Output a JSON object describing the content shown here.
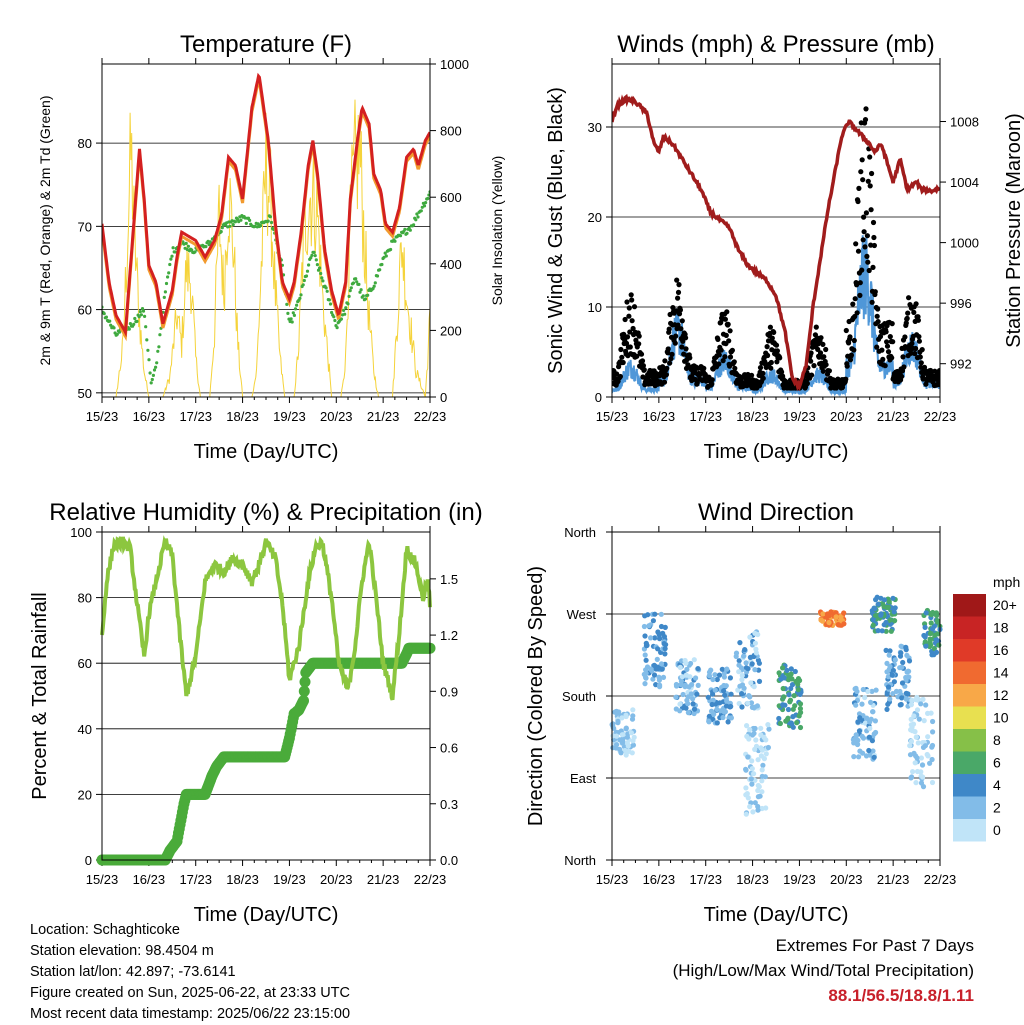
{
  "chart_data": [
    {
      "type": "line",
      "title": "Temperature (F)",
      "xlabel": "Time (Day/UTC)",
      "ylabel": "2m & 9m T (Red, Orange) & 2m Td (Green)",
      "y2label": "Solar Insolation (Yellow)",
      "x_ticks": [
        "15/23",
        "16/23",
        "17/23",
        "18/23",
        "19/23",
        "20/23",
        "21/23",
        "22/23"
      ],
      "ylim": [
        49.5,
        89.5
      ],
      "y_ticks": [
        50,
        60,
        70,
        80
      ],
      "y2lim": [
        0,
        1000
      ],
      "y2_ticks": [
        0,
        200,
        400,
        600,
        800,
        1000
      ],
      "series": [
        {
          "axis": "left",
          "color": "#d42020",
          "x": [
            0,
            0.15,
            0.3,
            0.5,
            0.65,
            0.8,
            0.9,
            1.0,
            1.15,
            1.3,
            1.5,
            1.6,
            1.7,
            2.0,
            2.2,
            2.4,
            2.55,
            2.7,
            2.85,
            3.0,
            3.2,
            3.35,
            3.55,
            3.7,
            3.85,
            4.0,
            4.1,
            4.25,
            4.4,
            4.5,
            4.6,
            4.75,
            4.9,
            5.05,
            5.2,
            5.3,
            5.45,
            5.55,
            5.7,
            5.8,
            5.95,
            6.05,
            6.2,
            6.35,
            6.5,
            6.65,
            6.75,
            6.9,
            7.0
          ],
          "values": [
            70,
            63,
            59,
            57,
            68,
            79,
            73,
            65,
            63,
            58,
            62,
            66,
            69,
            68,
            66,
            68,
            71,
            78,
            77,
            73,
            84,
            88,
            80,
            70,
            63,
            61,
            63,
            69,
            77,
            80,
            76,
            67,
            62,
            59,
            63,
            73,
            80,
            84,
            82,
            76,
            74,
            70,
            69,
            72,
            78,
            79,
            77,
            80,
            81
          ]
        },
        {
          "axis": "left",
          "color": "#3faa3f",
          "x": [
            0,
            0.3,
            0.6,
            0.9,
            1.05,
            1.15,
            1.35,
            1.5,
            1.7,
            2.0,
            2.3,
            2.6,
            3.0,
            3.3,
            3.6,
            3.85,
            4.0,
            4.2,
            4.5,
            4.8,
            5.0,
            5.2,
            5.4,
            5.6,
            5.8,
            6.0,
            6.2,
            6.4,
            6.6,
            6.8,
            7.0
          ],
          "values": [
            60,
            57,
            58,
            60,
            51,
            53,
            62,
            67,
            68,
            67,
            68,
            70,
            71,
            70,
            71,
            65,
            58,
            61,
            67,
            62,
            58,
            60,
            64,
            61,
            63,
            66,
            68,
            69,
            70,
            72,
            74
          ]
        },
        {
          "axis": "right",
          "color": "#f5d33a",
          "x": [
            0,
            0.1,
            0.2,
            0.3,
            0.45,
            0.55,
            0.62,
            0.7,
            0.8,
            0.9,
            1.0,
            1.1,
            1.2,
            1.3,
            1.45,
            1.6,
            1.7,
            1.8,
            1.9,
            2.0,
            2.1,
            2.2,
            2.3,
            2.4,
            2.5,
            2.6,
            2.7,
            2.8,
            2.9,
            3.0,
            3.1,
            3.2,
            3.3,
            3.4,
            3.5,
            3.6,
            3.7,
            3.8,
            3.9,
            4.0,
            4.1,
            4.2,
            4.3,
            4.4,
            4.5,
            4.6,
            4.7,
            4.8,
            4.9,
            5.0,
            5.1,
            5.2,
            5.3,
            5.4,
            5.5,
            5.6,
            5.7,
            5.8,
            5.9,
            6.0,
            6.1,
            6.2,
            6.3,
            6.4,
            6.5,
            6.6,
            6.7,
            6.8,
            6.9,
            7.0
          ],
          "values": [
            0,
            0,
            0,
            0,
            200,
            650,
            950,
            600,
            300,
            100,
            0,
            0,
            0,
            0,
            80,
            320,
            200,
            500,
            450,
            150,
            0,
            0,
            0,
            250,
            700,
            400,
            800,
            600,
            200,
            0,
            0,
            0,
            100,
            500,
            900,
            750,
            400,
            150,
            0,
            0,
            0,
            200,
            600,
            750,
            800,
            700,
            400,
            200,
            0,
            0,
            0,
            150,
            700,
            900,
            950,
            600,
            300,
            100,
            0,
            0,
            0,
            0,
            300,
            600,
            400,
            250,
            100,
            50,
            0,
            300
          ]
        }
      ]
    },
    {
      "type": "scatter",
      "title": "Winds (mph) & Pressure (mb)",
      "xlabel": "Time (Day/UTC)",
      "ylabel": "Sonic Wind & Gust (Blue, Black)",
      "y2label": "Station Pressure (Maroon)",
      "x_ticks": [
        "15/23",
        "16/23",
        "17/23",
        "18/23",
        "19/23",
        "20/23",
        "21/23",
        "22/23"
      ],
      "ylim": [
        0,
        37
      ],
      "y_ticks": [
        0,
        10,
        20,
        30
      ],
      "y2lim": [
        989.8,
        1011.8
      ],
      "y2_ticks": [
        992,
        996,
        1000,
        1004,
        1008
      ],
      "pressure": {
        "color": "#a01c1c",
        "x": [
          0,
          0.1,
          0.3,
          0.5,
          0.6,
          0.75,
          0.9,
          1.0,
          1.1,
          1.3,
          1.5,
          1.7,
          1.9,
          2.1,
          2.3,
          2.5,
          2.7,
          2.9,
          3.1,
          3.3,
          3.5,
          3.7,
          3.85,
          4.0,
          4.15,
          4.3,
          4.45,
          4.6,
          4.75,
          4.9,
          5.05,
          5.2,
          5.35,
          5.5,
          5.6,
          5.75,
          5.9,
          6.0,
          6.15,
          6.3,
          6.5,
          6.6,
          6.7,
          6.8,
          6.9,
          7.0
        ],
        "values": [
          1008,
          1009,
          1009.5,
          1009.3,
          1009,
          1008.5,
          1006.5,
          1006,
          1007,
          1006.5,
          1005.5,
          1004.5,
          1003.5,
          1002,
          1001.5,
          1001,
          999.5,
          998.5,
          998,
          997.5,
          996.5,
          994,
          991,
          990.5,
          992,
          996,
          999,
          1002,
          1004.5,
          1007,
          1008,
          1007.5,
          1007,
          1006.5,
          1006,
          1006.5,
          1005,
          1004,
          1005.5,
          1003.5,
          1004,
          1003.5,
          1003.5,
          1003.4,
          1003.5,
          1003.6
        ]
      },
      "sustained": {
        "color": "#4f97d8",
        "daily_peak": [
          4,
          9,
          5,
          3,
          3,
          17,
          7,
          8
        ]
      },
      "gust": {
        "color": "#000000",
        "daily_peak": [
          12,
          14,
          10,
          8,
          8,
          34,
          12,
          12
        ]
      }
    },
    {
      "type": "line",
      "title": "Relative Humidity (%) & Precipitation (in)",
      "xlabel": "Time (Day/UTC)",
      "ylabel": "Percent & Total Rainfall",
      "x_ticks": [
        "15/23",
        "16/23",
        "17/23",
        "18/23",
        "19/23",
        "20/23",
        "21/23",
        "22/23"
      ],
      "ylim": [
        0,
        100
      ],
      "y_ticks": [
        0,
        20,
        40,
        60,
        80,
        100
      ],
      "y2lim": [
        0,
        1.75
      ],
      "y2_ticks": [
        "0.0",
        "0.3",
        "0.6",
        "0.9",
        "1.2",
        "1.5"
      ],
      "series": [
        {
          "name": "RH",
          "axis": "left",
          "color": "#8cc63f",
          "x": [
            0,
            0.1,
            0.25,
            0.45,
            0.6,
            0.75,
            0.9,
            1.0,
            1.2,
            1.35,
            1.5,
            1.65,
            1.8,
            2.0,
            2.2,
            2.4,
            2.6,
            2.8,
            3.0,
            3.2,
            3.35,
            3.5,
            3.7,
            3.85,
            4.0,
            4.2,
            4.4,
            4.55,
            4.7,
            4.9,
            5.05,
            5.25,
            5.4,
            5.55,
            5.7,
            5.85,
            6.0,
            6.2,
            6.35,
            6.5,
            6.7,
            6.85,
            6.95,
            7.0
          ],
          "values": [
            68,
            85,
            96,
            97,
            95,
            78,
            62,
            75,
            88,
            97,
            93,
            70,
            50,
            62,
            85,
            90,
            88,
            92,
            90,
            85,
            90,
            97,
            92,
            78,
            55,
            65,
            85,
            95,
            97,
            80,
            60,
            52,
            65,
            85,
            97,
            80,
            60,
            50,
            70,
            95,
            90,
            80,
            85,
            78
          ]
        },
        {
          "name": "Precip",
          "axis": "right",
          "color": "#4aab3a",
          "x": [
            0,
            0.5,
            1.0,
            1.35,
            1.45,
            1.6,
            1.75,
            1.8,
            2.2,
            2.35,
            2.45,
            2.6,
            3.0,
            3.5,
            3.9,
            4.0,
            4.1,
            4.2,
            4.3,
            4.35,
            4.5,
            4.6,
            5.0,
            5.5,
            6.0,
            6.4,
            6.5,
            6.55,
            7.0
          ],
          "values": [
            0,
            0,
            0,
            0,
            0.05,
            0.1,
            0.3,
            0.35,
            0.35,
            0.45,
            0.5,
            0.55,
            0.55,
            0.55,
            0.55,
            0.65,
            0.78,
            0.8,
            0.85,
            1.0,
            1.05,
            1.05,
            1.05,
            1.05,
            1.05,
            1.05,
            1.1,
            1.13,
            1.13
          ]
        }
      ]
    },
    {
      "type": "scatter",
      "title": "Wind Direction",
      "xlabel": "Time (Day/UTC)",
      "ylabel": "Direction (Colored By Speed)",
      "x_ticks": [
        "15/23",
        "16/23",
        "17/23",
        "18/23",
        "19/23",
        "20/23",
        "21/23",
        "22/23"
      ],
      "y_ticks": [
        "North",
        "East",
        "South",
        "West",
        "North"
      ],
      "ylim": [
        0,
        360
      ],
      "legend": {
        "title": "mph",
        "labels": [
          "20+",
          "18",
          "16",
          "14",
          "12",
          "10",
          "8",
          "6",
          "4",
          "2",
          "0"
        ],
        "colors": [
          "#a01818",
          "#c82424",
          "#e03a28",
          "#f06a30",
          "#f8a848",
          "#e8e050",
          "#86c048",
          "#4aa868",
          "#3f88c8",
          "#82bce8",
          "#c0e4f8"
        ]
      },
      "clusters": [
        {
          "day": 0.25,
          "dir": 140,
          "spread": 25,
          "speed": 1
        },
        {
          "day": 0.9,
          "dir": 230,
          "spread": 40,
          "speed": 3
        },
        {
          "day": 1.6,
          "dir": 190,
          "spread": 30,
          "speed": 2
        },
        {
          "day": 2.3,
          "dir": 180,
          "spread": 30,
          "speed": 3
        },
        {
          "day": 2.9,
          "dir": 210,
          "spread": 45,
          "speed": 2
        },
        {
          "day": 3.1,
          "dir": 100,
          "spread": 50,
          "speed": 1
        },
        {
          "day": 3.8,
          "dir": 180,
          "spread": 35,
          "speed": 5
        },
        {
          "day": 4.7,
          "dir": 265,
          "spread": 8,
          "speed": 13
        },
        {
          "day": 5.4,
          "dir": 150,
          "spread": 40,
          "speed": 2
        },
        {
          "day": 5.8,
          "dir": 270,
          "spread": 20,
          "speed": 5
        },
        {
          "day": 6.1,
          "dir": 200,
          "spread": 35,
          "speed": 3
        },
        {
          "day": 6.6,
          "dir": 130,
          "spread": 50,
          "speed": 1
        },
        {
          "day": 6.9,
          "dir": 250,
          "spread": 25,
          "speed": 5
        }
      ]
    }
  ],
  "info": {
    "location": "Location: Schaghticoke",
    "elevation": "Station elevation: 98.4504 m",
    "latlon": "Station lat/lon: 42.897; -73.6141",
    "created": "Figure created on Sun, 2025-06-22, at 23:33 UTC",
    "recent": "Most recent data timestamp: 2025/06/22 23:15:00"
  },
  "extremes": {
    "title": "Extremes For Past 7 Days",
    "subtitle": "(High/Low/Max Wind/Total Precipitation)",
    "values": "88.1/56.5/18.8/1.11"
  }
}
